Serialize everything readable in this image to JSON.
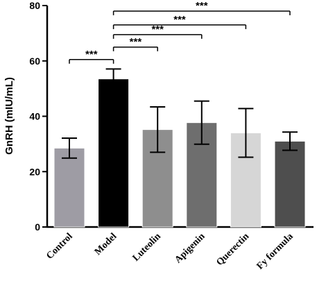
{
  "chart_data": {
    "type": "bar",
    "ylabel": "GnRH (mIU/mL)",
    "ylim": [
      0,
      80
    ],
    "yticks": [
      "0",
      "20",
      "40",
      "60",
      "80"
    ],
    "categories": [
      "Control",
      "Model",
      "Luteolin",
      "Apigenin",
      "Querectin",
      "Fy formula"
    ],
    "values": [
      28.5,
      53.5,
      35.2,
      37.7,
      34.0,
      31.0
    ],
    "errors": [
      3.6,
      3.6,
      8.2,
      7.8,
      8.8,
      3.3
    ],
    "colors": [
      "#9e9ca4",
      "#000000",
      "#8e8e8e",
      "#6e6e6e",
      "#d6d6d6",
      "#4e4e4e"
    ],
    "significance": [
      {
        "from": "Control",
        "to": "Model",
        "label": "***",
        "y": 60.5
      },
      {
        "from": "Model",
        "to": "Luteolin",
        "label": "***",
        "y": 65
      },
      {
        "from": "Model",
        "to": "Apigenin",
        "label": "***",
        "y": 69.5
      },
      {
        "from": "Model",
        "to": "Querectin",
        "label": "***",
        "y": 73
      },
      {
        "from": "Model",
        "to": "Fy formula",
        "label": "***",
        "y": 78
      }
    ],
    "grid": false,
    "legend": "none"
  }
}
